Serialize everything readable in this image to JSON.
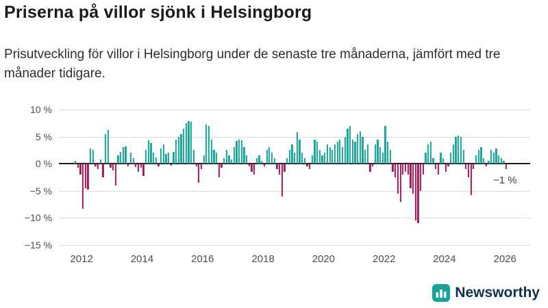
{
  "header": {
    "title": "Priserna på villor sjönk i Helsingborg",
    "subtitle": "Prisutveckling för villor i Helsingborg under de senaste tre månaderna, jämfört med tre månader tidigare."
  },
  "chart_data": {
    "type": "bar",
    "title": "Priserna på villor sjönk i Helsingborg",
    "xlabel": "",
    "ylabel": "",
    "unit": "%",
    "start_month": "2011-10",
    "frequency": "monthly",
    "x_domain": {
      "start_offset": 6,
      "total_months": 187
    },
    "y_axis": {
      "min": -15.5,
      "max": 11,
      "gridlines": [
        {
          "value": 10,
          "label": "10 %"
        },
        {
          "value": 5,
          "label": "5 %"
        },
        {
          "value": 0,
          "label": "0 %"
        },
        {
          "value": -5,
          "label": "−5 %"
        },
        {
          "value": -10,
          "label": "−10 %"
        },
        {
          "value": -15,
          "label": "−15 %"
        }
      ]
    },
    "x_ticks": [
      {
        "label": "2012",
        "offset": 9
      },
      {
        "label": "2014",
        "offset": 33
      },
      {
        "label": "2016",
        "offset": 57
      },
      {
        "label": "2018",
        "offset": 81
      },
      {
        "label": "2020",
        "offset": 105
      },
      {
        "label": "2022",
        "offset": 129
      },
      {
        "label": "2024",
        "offset": 153
      },
      {
        "label": "2026",
        "offset": 177
      }
    ],
    "values": [
      0.5,
      -0.8,
      -2,
      -8.3,
      -4.5,
      -4.8,
      2.8,
      2.5,
      -0.5,
      -1,
      0.8,
      -2.5,
      5.5,
      6.2,
      -0.7,
      -1.2,
      -4,
      1.5,
      2.2,
      3,
      3.2,
      -0.5,
      2,
      1,
      -0.6,
      -1.5,
      -0.8,
      -2.2,
      2.5,
      4.3,
      3.8,
      2,
      1.2,
      -0.5,
      2.8,
      3.5,
      1.8,
      2,
      -0.4,
      2.2,
      4.5,
      5,
      5.5,
      6.5,
      7.5,
      7.8,
      7.7,
      2.5,
      -0.5,
      -3.5,
      -1,
      1.5,
      7.2,
      7,
      4.5,
      2.5,
      2,
      -2.5,
      -0.8,
      1,
      2.5,
      1.5,
      0.8,
      3,
      4.2,
      4.5,
      4.3,
      3,
      1.5,
      -0.5,
      -1.5,
      -2,
      1,
      1.5,
      0.5,
      -0.5,
      2.5,
      3,
      2,
      1,
      -1,
      -2,
      -6,
      -1.5,
      1,
      2.5,
      3.5,
      2,
      5.8,
      4.5,
      2,
      1,
      -0.5,
      -1,
      1.5,
      4.5,
      4,
      2.5,
      1.5,
      2,
      3.5,
      3,
      2.5,
      3.5,
      4,
      4.5,
      3,
      5,
      6.5,
      7,
      4.5,
      4,
      5.5,
      6,
      5,
      2.5,
      3.5,
      -1.5,
      -0.5,
      3.5,
      4.5,
      3,
      2,
      7,
      4,
      2.5,
      -1.5,
      -2.5,
      -5.5,
      -7,
      -2,
      -1.5,
      -2,
      -4.5,
      -5.5,
      -10.5,
      -11,
      -5,
      -2,
      2,
      3.5,
      4,
      1,
      -1,
      -2,
      2,
      1,
      -1.5,
      -0.5,
      2,
      3.5,
      5,
      5.2,
      5,
      2.5,
      -1,
      -2.5,
      -5.8,
      -1,
      1.5,
      2.5,
      3,
      1,
      -0.5,
      0.5,
      2.5,
      2,
      2.8,
      1.5,
      1,
      0.5,
      -1
    ],
    "colors": {
      "positive": "#17a398",
      "negative": "#a0195b"
    },
    "annotation": {
      "text": "−1 %",
      "value": -1
    }
  },
  "brand": {
    "teal": "#17a398"
  },
  "footer": {
    "brand": "Newsworthy"
  }
}
